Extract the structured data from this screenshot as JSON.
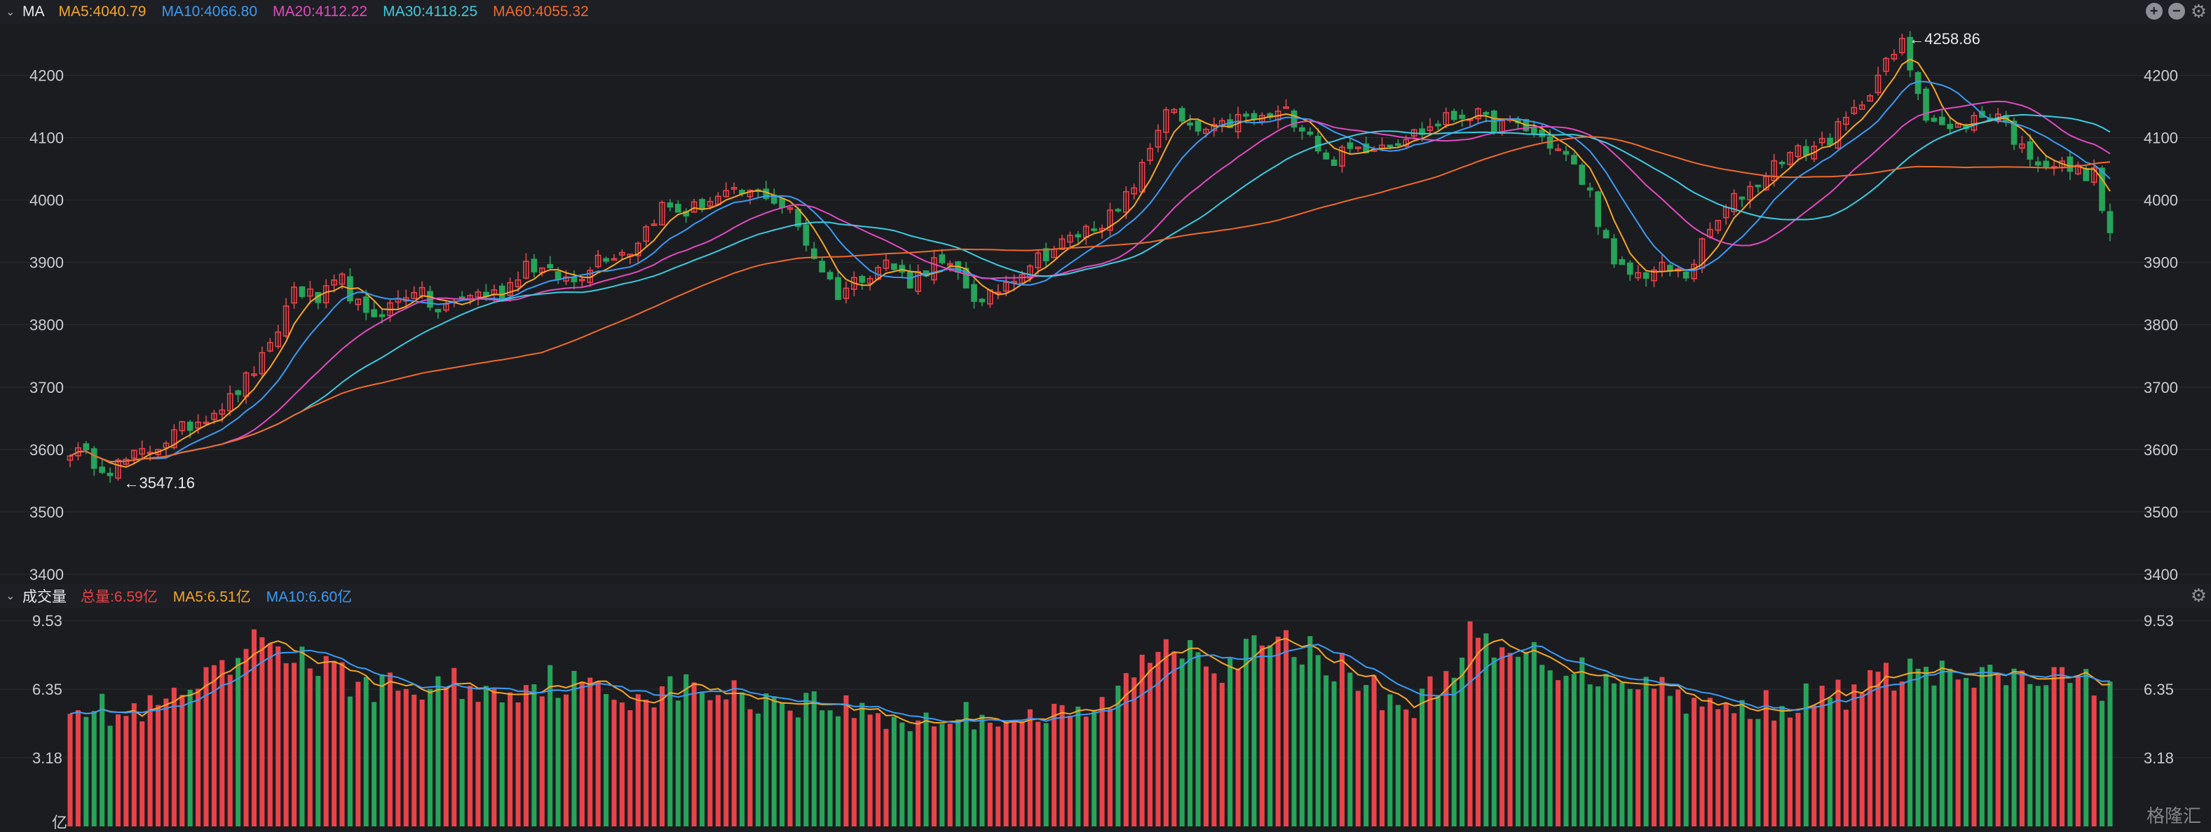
{
  "price_panel": {
    "title": "MA",
    "legend": [
      {
        "label": "MA5:4040.79",
        "color": "#f5a623"
      },
      {
        "label": "MA10:4066.80",
        "color": "#3b9bf5"
      },
      {
        "label": "MA20:4112.22",
        "color": "#e24ac0"
      },
      {
        "label": "MA30:4118.25",
        "color": "#3ccbe0"
      },
      {
        "label": "MA60:4055.32",
        "color": "#f06a2a"
      }
    ],
    "y_ticks": [
      "4200",
      "4100",
      "4000",
      "3900",
      "3800",
      "3700",
      "3600",
      "3500",
      "3400"
    ],
    "high_label": "←4258.86",
    "low_label": "←3547.16"
  },
  "volume_panel": {
    "title": "成交量",
    "legend": [
      {
        "label": "总量:6.59亿",
        "color": "#e8434a"
      },
      {
        "label": "MA5:6.51亿",
        "color": "#f5a623"
      },
      {
        "label": "MA10:6.60亿",
        "color": "#3b9bf5"
      }
    ],
    "y_ticks": [
      "9.53",
      "6.35",
      "3.18"
    ],
    "unit": "亿"
  },
  "toolbar": {
    "zoom_in": "+",
    "zoom_out": "−",
    "settings": "⚙"
  },
  "watermark": "格隆汇",
  "colors": {
    "up": "#e8434a",
    "down": "#27a35a",
    "background": "#1b1c20"
  },
  "chart_data": [
    {
      "type": "candlestick",
      "ylim": [
        3400,
        4260
      ],
      "y_ticks": [
        3400,
        3500,
        3600,
        3700,
        3800,
        3900,
        4000,
        4100,
        4200
      ],
      "close_anchors": [
        [
          0,
          3600
        ],
        [
          5,
          3570
        ],
        [
          10,
          3600
        ],
        [
          15,
          3640
        ],
        [
          20,
          3680
        ],
        [
          25,
          3760
        ],
        [
          28,
          3860
        ],
        [
          31,
          3840
        ],
        [
          34,
          3870
        ],
        [
          37,
          3810
        ],
        [
          40,
          3830
        ],
        [
          43,
          3860
        ],
        [
          46,
          3820
        ],
        [
          50,
          3850
        ],
        [
          54,
          3850
        ],
        [
          57,
          3900
        ],
        [
          60,
          3880
        ],
        [
          63,
          3870
        ],
        [
          66,
          3910
        ],
        [
          70,
          3920
        ],
        [
          74,
          3990
        ],
        [
          77,
          3980
        ],
        [
          80,
          4000
        ],
        [
          84,
          4010
        ],
        [
          87,
          4010
        ],
        [
          90,
          3980
        ],
        [
          93,
          3910
        ],
        [
          96,
          3850
        ],
        [
          99,
          3880
        ],
        [
          102,
          3900
        ],
        [
          105,
          3870
        ],
        [
          108,
          3900
        ],
        [
          111,
          3880
        ],
        [
          114,
          3830
        ],
        [
          117,
          3870
        ],
        [
          120,
          3900
        ],
        [
          124,
          3930
        ],
        [
          128,
          3960
        ],
        [
          131,
          3980
        ],
        [
          134,
          4050
        ],
        [
          137,
          4150
        ],
        [
          140,
          4110
        ],
        [
          143,
          4110
        ],
        [
          146,
          4130
        ],
        [
          149,
          4130
        ],
        [
          152,
          4140
        ],
        [
          155,
          4110
        ],
        [
          157,
          4060
        ],
        [
          160,
          4080
        ],
        [
          163,
          4090
        ],
        [
          166,
          4100
        ],
        [
          169,
          4110
        ],
        [
          172,
          4130
        ],
        [
          175,
          4140
        ],
        [
          178,
          4120
        ],
        [
          181,
          4120
        ],
        [
          184,
          4100
        ],
        [
          187,
          4070
        ],
        [
          190,
          4010
        ],
        [
          193,
          3890
        ],
        [
          196,
          3880
        ],
        [
          199,
          3890
        ],
        [
          202,
          3880
        ],
        [
          205,
          3950
        ],
        [
          208,
          4000
        ],
        [
          211,
          4030
        ],
        [
          214,
          4070
        ],
        [
          217,
          4080
        ],
        [
          220,
          4100
        ],
        [
          223,
          4140
        ],
        [
          226,
          4200
        ],
        [
          229,
          4250
        ],
        [
          232,
          4140
        ],
        [
          235,
          4110
        ],
        [
          238,
          4130
        ],
        [
          241,
          4140
        ],
        [
          244,
          4080
        ],
        [
          247,
          4060
        ],
        [
          250,
          4050
        ],
        [
          253,
          4040
        ],
        [
          255,
          3940
        ]
      ],
      "high": 4258.86,
      "low": 3547.16
    },
    {
      "type": "bar",
      "name": "volume",
      "unit": "亿",
      "ylim": [
        0,
        9.53
      ],
      "value_anchors": [
        [
          0,
          6.0
        ],
        [
          6,
          5.1
        ],
        [
          10,
          5.3
        ],
        [
          15,
          6.2
        ],
        [
          20,
          7.2
        ],
        [
          24,
          8.8
        ],
        [
          28,
          8.0
        ],
        [
          32,
          7.2
        ],
        [
          36,
          6.6
        ],
        [
          40,
          6.4
        ],
        [
          44,
          6.3
        ],
        [
          48,
          6.7
        ],
        [
          52,
          6.1
        ],
        [
          56,
          6.5
        ],
        [
          60,
          6.8
        ],
        [
          64,
          6.5
        ],
        [
          68,
          6.0
        ],
        [
          72,
          6.2
        ],
        [
          76,
          6.4
        ],
        [
          80,
          6.3
        ],
        [
          84,
          6.0
        ],
        [
          88,
          5.9
        ],
        [
          92,
          5.8
        ],
        [
          96,
          5.6
        ],
        [
          100,
          5.2
        ],
        [
          104,
          4.9
        ],
        [
          108,
          5.0
        ],
        [
          112,
          5.1
        ],
        [
          116,
          5.2
        ],
        [
          120,
          5.1
        ],
        [
          124,
          5.0
        ],
        [
          128,
          5.3
        ],
        [
          132,
          6.6
        ],
        [
          136,
          8.4
        ],
        [
          140,
          8.6
        ],
        [
          144,
          7.4
        ],
        [
          148,
          8.2
        ],
        [
          152,
          8.4
        ],
        [
          156,
          8.0
        ],
        [
          160,
          7.0
        ],
        [
          164,
          6.1
        ],
        [
          168,
          5.5
        ],
        [
          172,
          7.0
        ],
        [
          175,
          8.9
        ],
        [
          178,
          7.8
        ],
        [
          182,
          8.0
        ],
        [
          186,
          7.5
        ],
        [
          190,
          7.1
        ],
        [
          194,
          7.0
        ],
        [
          198,
          6.6
        ],
        [
          202,
          6.0
        ],
        [
          206,
          5.3
        ],
        [
          210,
          5.6
        ],
        [
          214,
          5.7
        ],
        [
          218,
          5.9
        ],
        [
          222,
          6.2
        ],
        [
          226,
          6.7
        ],
        [
          230,
          7.3
        ],
        [
          234,
          7.0
        ],
        [
          238,
          6.7
        ],
        [
          242,
          6.9
        ],
        [
          246,
          6.8
        ],
        [
          250,
          6.7
        ],
        [
          255,
          6.59
        ]
      ]
    }
  ]
}
